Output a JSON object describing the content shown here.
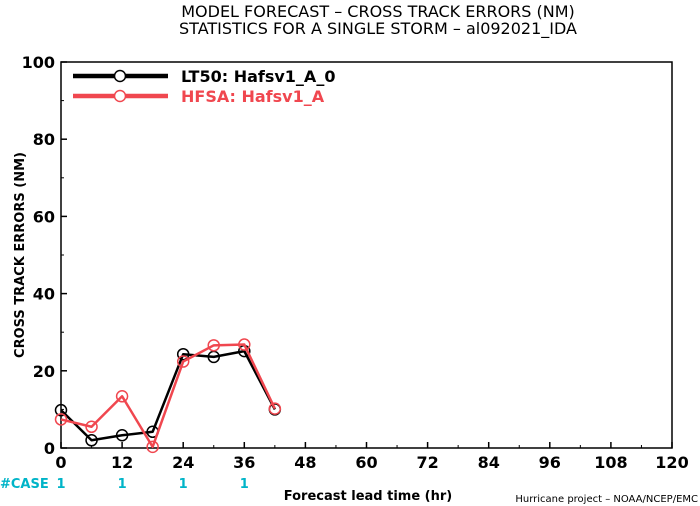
{
  "title_line1": "MODEL FORECAST – CROSS TRACK ERRORS (NM)",
  "title_line2": "STATISTICS FOR A SINGLE STORM – al092021_IDA",
  "credit": "Hurricane project – NOAA/NCEP/EMC",
  "case_label": "#CASE",
  "colors": {
    "series_0": "#000000",
    "series_1": "#f0474f",
    "case": "#00b4c8"
  },
  "chart_data": {
    "type": "line",
    "title": "MODEL FORECAST – CROSS TRACK ERRORS (NM)",
    "subtitle": "STATISTICS FOR A SINGLE STORM – al092021_IDA",
    "xlabel": "Forecast lead time (hr)",
    "ylabel": "CROSS TRACK ERRORS (NM)",
    "xlim": [
      0,
      120
    ],
    "ylim": [
      0,
      100
    ],
    "xticks": [
      "0",
      "12",
      "24",
      "36",
      "48",
      "60",
      "72",
      "84",
      "96",
      "108",
      "120"
    ],
    "yticks": [
      "0",
      "20",
      "40",
      "60",
      "80",
      "100"
    ],
    "grid": false,
    "legend_position": "top-left",
    "series": [
      {
        "name": "LT50: Hafsv1_A_0",
        "x": [
          0,
          6,
          12,
          18,
          24,
          30,
          36,
          42
        ],
        "y": [
          9.8,
          2.0,
          3.3,
          4.2,
          24.3,
          23.6,
          25.1,
          10.0
        ]
      },
      {
        "name": "HFSA: Hafsv1_A",
        "x": [
          0,
          6,
          12,
          18,
          24,
          30,
          36,
          42
        ],
        "y": [
          7.4,
          5.5,
          13.4,
          0.3,
          22.4,
          26.6,
          26.8,
          10.2
        ]
      }
    ],
    "case_counts": [
      {
        "x": "0",
        "count": "1"
      },
      {
        "x": "12",
        "count": "1"
      },
      {
        "x": "24",
        "count": "1"
      },
      {
        "x": "36",
        "count": "1"
      }
    ]
  }
}
